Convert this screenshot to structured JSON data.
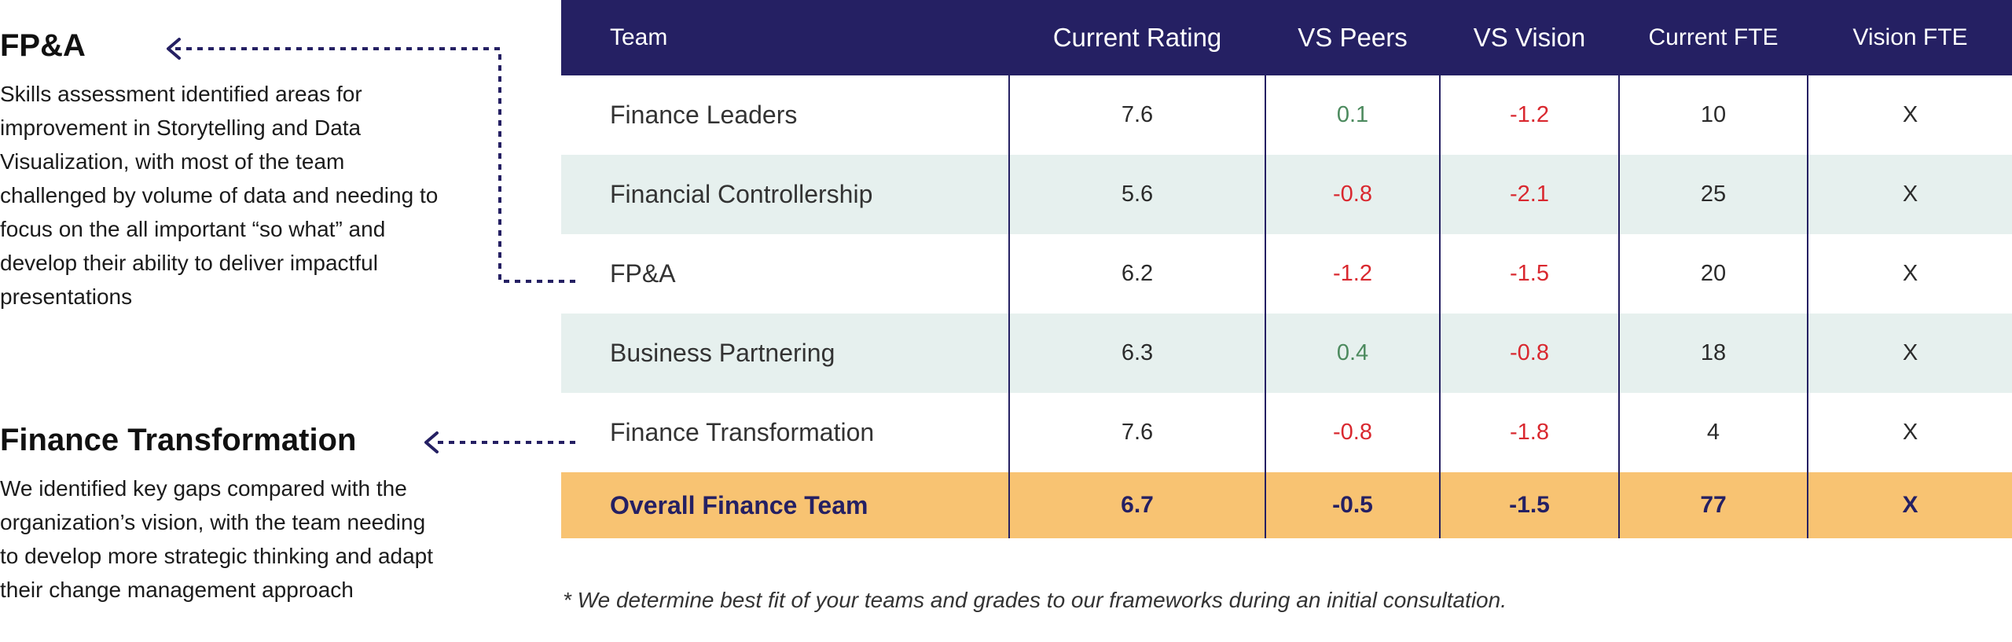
{
  "callouts": {
    "fpa": {
      "title": "FP&A",
      "text": "Skills assessment identified areas for improvement in Storytelling and Data Visualization, with most of the team challenged by volume of data and needing to focus on the all important “so what” and develop their ability to deliver impactful presentations"
    },
    "ft": {
      "title": "Finance Transformation",
      "text": "We identified key gaps compared with the organization’s vision, with the team needing to develop more strategic thinking and adapt their change management approach"
    }
  },
  "table": {
    "headers": {
      "team": "Team",
      "current_rating": "Current Rating",
      "vs_peers": "VS Peers",
      "vs_vision": "VS Vision",
      "current_fte": "Current FTE",
      "vision_fte": "Vision FTE"
    },
    "rows": [
      {
        "team": "Finance Leaders",
        "current_rating": "7.6",
        "vs_peers": "0.1",
        "vs_vision": "-1.2",
        "current_fte": "10",
        "vision_fte": "X"
      },
      {
        "team": "Financial Controllership",
        "current_rating": "5.6",
        "vs_peers": "-0.8",
        "vs_vision": "-2.1",
        "current_fte": "25",
        "vision_fte": "X"
      },
      {
        "team": "FP&A",
        "current_rating": "6.2",
        "vs_peers": "-1.2",
        "vs_vision": "-1.5",
        "current_fte": "20",
        "vision_fte": "X"
      },
      {
        "team": "Business Partnering",
        "current_rating": "6.3",
        "vs_peers": "0.4",
        "vs_vision": "-0.8",
        "current_fte": "18",
        "vision_fte": "X"
      },
      {
        "team": "Finance Transformation",
        "current_rating": "7.6",
        "vs_peers": "-0.8",
        "vs_vision": "-1.8",
        "current_fte": "4",
        "vision_fte": "X"
      }
    ],
    "total": {
      "team": "Overall Finance Team",
      "current_rating": "6.7",
      "vs_peers": "-0.5",
      "vs_vision": "-1.5",
      "current_fte": "77",
      "vision_fte": "X"
    }
  },
  "footnote": "* We determine best fit of your teams and grades to our frameworks during an initial consultation.",
  "colors": {
    "header_bg": "#252063",
    "alt_row_bg": "#e6f0ee",
    "total_row_bg": "#f8c372",
    "positive": "#4c8a5e",
    "negative": "#d9282f"
  }
}
